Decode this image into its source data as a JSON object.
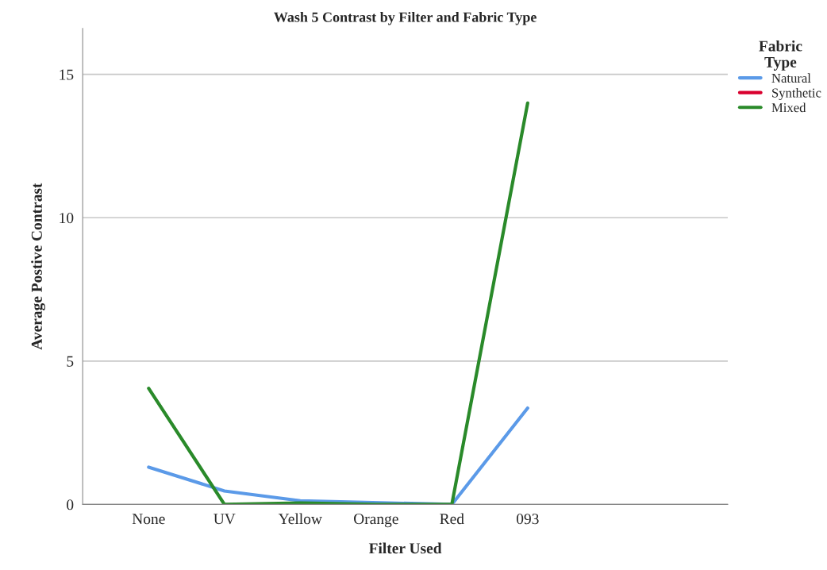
{
  "chart_data": {
    "type": "line",
    "title": "Wash 5 Contrast by Filter and Fabric Type",
    "xlabel": "Filter Used",
    "ylabel": "Average Postive Contrast",
    "legend_title": "Fabric\nType",
    "categories": [
      "None",
      "UV",
      "Yellow",
      "Orange",
      "Red",
      "093"
    ],
    "series": [
      {
        "name": "Natural",
        "color": "#5b9ae8",
        "values": [
          1.3,
          0.47,
          0.13,
          null,
          0,
          3.36
        ]
      },
      {
        "name": "Synthetic",
        "color": "#d9002e",
        "values": [
          null,
          null,
          null,
          null,
          null,
          null
        ]
      },
      {
        "name": "Mixed",
        "color": "#2a8a2a",
        "values": [
          4.05,
          0,
          0.05,
          0,
          0,
          14.0
        ]
      }
    ],
    "ylim": [
      0,
      16.6
    ],
    "yticks": [
      0,
      5,
      10,
      15
    ],
    "grid": "y",
    "legend": "top right",
    "marker": "none",
    "line_style": "solid"
  }
}
